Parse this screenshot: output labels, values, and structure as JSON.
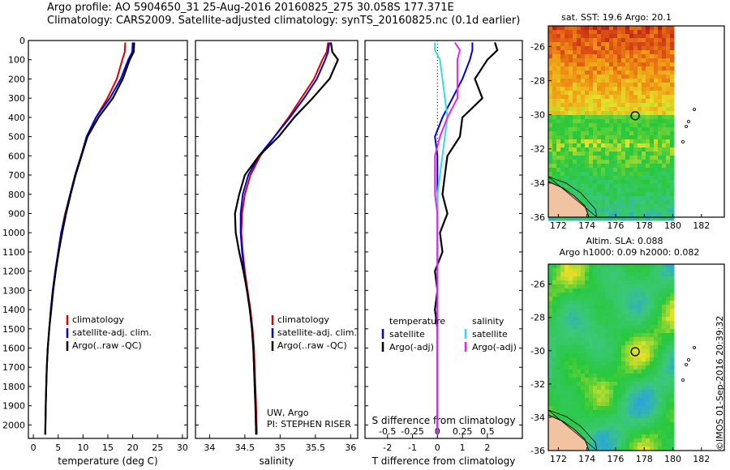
{
  "header": {
    "line1": "Argo profile: AO 5904650_31 25-Aug-2016 20160825_275 30.058S 177.371E",
    "line2": "Climatology: CARS2009. Satellite-adjusted climatology: synTS_20160825.nc (0.1d earlier)"
  },
  "stamp": "©IMOS 01-Sep-2016 20:39:32",
  "colors": {
    "clim": "#dd0000",
    "sat": "#0000dd",
    "argo": "#000000",
    "sal_sat": "#33dddd",
    "sal_argo": "#ee22ee"
  },
  "chart_data": [
    {
      "type": "line",
      "id": "temperature",
      "xlabel": "temperature (deg C)",
      "ylabel": "",
      "xlim": [
        -1,
        31
      ],
      "ylim": [
        2070,
        0
      ],
      "xticks": [
        0,
        5,
        10,
        15,
        20,
        25,
        30
      ],
      "yticks": [
        0,
        100,
        200,
        300,
        400,
        500,
        600,
        700,
        800,
        900,
        1000,
        1100,
        1200,
        1300,
        1400,
        1500,
        1600,
        1700,
        1800,
        1900,
        2000
      ],
      "legend": [
        "climatology",
        "satellite-adj. clim.",
        "Argo(..raw -QC)"
      ],
      "series": [
        {
          "name": "climatology",
          "color": "clim",
          "x": [
            18.5,
            18.4,
            17.9,
            16.8,
            14.9,
            12.6,
            10.8,
            9.6,
            8.4,
            7.4,
            6.4,
            5.6,
            5.0,
            4.4,
            3.9,
            3.5,
            3.2,
            2.9,
            2.7,
            2.6,
            2.5,
            2.4
          ],
          "y": [
            10,
            60,
            100,
            200,
            300,
            400,
            500,
            600,
            700,
            800,
            900,
            1000,
            1100,
            1200,
            1300,
            1400,
            1500,
            1600,
            1700,
            1800,
            1900,
            2050
          ]
        },
        {
          "name": "satellite-adj. clim.",
          "color": "sat",
          "x": [
            20.0,
            19.9,
            19.1,
            17.6,
            15.4,
            12.6,
            10.7,
            9.6,
            8.4,
            7.4,
            6.5,
            5.6,
            5.0,
            4.4,
            3.9,
            3.5,
            3.2,
            2.9,
            2.7,
            2.6,
            2.5,
            2.4
          ],
          "y": [
            10,
            60,
            100,
            200,
            300,
            400,
            500,
            600,
            700,
            800,
            900,
            1000,
            1100,
            1200,
            1300,
            1400,
            1500,
            1600,
            1700,
            1800,
            1900,
            2050
          ]
        },
        {
          "name": "Argo(..raw -QC)",
          "color": "argo",
          "x": [
            20.3,
            20.2,
            19.4,
            18.0,
            16.0,
            13.1,
            10.9,
            9.7,
            8.5,
            7.5,
            6.6,
            5.8,
            5.1,
            4.5,
            4.0,
            3.6,
            3.2,
            2.9,
            2.7,
            2.6,
            2.5,
            2.4
          ],
          "y": [
            10,
            60,
            100,
            200,
            300,
            400,
            500,
            600,
            700,
            800,
            900,
            1000,
            1100,
            1200,
            1300,
            1400,
            1500,
            1600,
            1700,
            1800,
            1900,
            2050
          ]
        }
      ]
    },
    {
      "type": "line",
      "id": "salinity",
      "xlabel": "salinity",
      "xlim": [
        33.8,
        36.1
      ],
      "ylim": [
        2070,
        0
      ],
      "xticks": [
        34,
        34.5,
        35,
        35.5,
        36
      ],
      "legend": [
        "climatology",
        "satellite-adj. clim.",
        "Argo(..raw -QC)"
      ],
      "annotation": [
        "UW, Argo",
        "PI: STEPHEN RISER"
      ],
      "series": [
        {
          "name": "climatology",
          "color": "clim",
          "x": [
            35.68,
            35.66,
            35.6,
            35.48,
            35.3,
            35.12,
            34.92,
            34.72,
            34.58,
            34.5,
            34.46,
            34.45,
            34.47,
            34.5,
            34.54,
            34.58,
            34.61,
            34.63,
            34.64,
            34.65,
            34.66,
            34.67
          ],
          "y": [
            10,
            60,
            100,
            200,
            300,
            400,
            500,
            600,
            700,
            800,
            900,
            1000,
            1100,
            1200,
            1300,
            1400,
            1500,
            1600,
            1700,
            1800,
            1900,
            2050
          ]
        },
        {
          "name": "satellite-adj. clim.",
          "color": "sat",
          "x": [
            35.7,
            35.68,
            35.64,
            35.52,
            35.34,
            35.14,
            34.92,
            34.7,
            34.55,
            34.47,
            34.44,
            34.44,
            34.46,
            34.49,
            34.53,
            34.57,
            34.6,
            34.62,
            34.63,
            34.64,
            34.65,
            34.66
          ],
          "y": [
            10,
            60,
            100,
            200,
            300,
            400,
            500,
            600,
            700,
            800,
            900,
            1000,
            1100,
            1200,
            1300,
            1400,
            1500,
            1600,
            1700,
            1800,
            1900,
            2050
          ]
        },
        {
          "name": "Argo(..raw -QC)",
          "color": "argo",
          "x": [
            35.72,
            35.74,
            35.82,
            35.7,
            35.46,
            35.2,
            34.98,
            34.7,
            34.5,
            34.42,
            34.36,
            34.37,
            34.42,
            34.48,
            34.53,
            34.57,
            34.6,
            34.62,
            34.63,
            34.64,
            34.65,
            34.66
          ],
          "y": [
            10,
            60,
            100,
            200,
            300,
            400,
            500,
            600,
            700,
            800,
            900,
            1000,
            1100,
            1200,
            1300,
            1400,
            1500,
            1600,
            1700,
            1800,
            1900,
            2050
          ]
        }
      ]
    },
    {
      "type": "line",
      "id": "difference",
      "xlabel": "T difference from climatology",
      "xlabel_top": "S difference from climatology",
      "xlim": [
        -2.9,
        3.4
      ],
      "ylim": [
        2070,
        0
      ],
      "xticks": [
        -2,
        -1,
        0,
        1,
        2
      ],
      "xticks_top": [
        "-0.5",
        "-0.25",
        "0",
        "0.25",
        "0.5"
      ],
      "xticks_top_pos": [
        -2,
        -1,
        0,
        1,
        2
      ],
      "legend_left": {
        "head": "temperature",
        "items": [
          "satellite",
          "Argo(-adj)"
        ]
      },
      "legend_right": {
        "head": "salinity",
        "items": [
          "satellite",
          "Argo(-adj)"
        ]
      },
      "series": [
        {
          "name": "satellite",
          "group": "temperature",
          "color": "sat",
          "x": [
            1.4,
            1.4,
            1.3,
            1.0,
            0.6,
            0.2,
            -0.1,
            0.0,
            0.0,
            0.0,
            0.0,
            0.0,
            0.0,
            0.0,
            0.0,
            0.0,
            0.0,
            0.0,
            0.0,
            0.0,
            0.0
          ],
          "y": [
            10,
            50,
            100,
            200,
            300,
            400,
            500,
            600,
            700,
            800,
            900,
            1000,
            1100,
            1200,
            1300,
            1400,
            1500,
            1600,
            1700,
            1800,
            2050
          ]
        },
        {
          "name": "Argo(-adj)",
          "group": "temperature",
          "color": "argo",
          "x": [
            2.3,
            2.4,
            2.0,
            1.5,
            1.8,
            1.0,
            0.9,
            0.4,
            0.3,
            0.2,
            0.4,
            0.1,
            0.2,
            -0.1,
            0.0,
            -0.1,
            0.0,
            0.0,
            0.0,
            0.0,
            0.0
          ],
          "y": [
            10,
            50,
            100,
            200,
            300,
            400,
            500,
            600,
            700,
            800,
            900,
            1000,
            1100,
            1200,
            1300,
            1400,
            1500,
            1600,
            1700,
            1800,
            2050
          ]
        },
        {
          "name": "satellite",
          "group": "salinity",
          "color": "sal_sat",
          "x": [
            -0.1,
            -0.1,
            0.1,
            0.2,
            0.3,
            0.4,
            0.3,
            0.2,
            0.1,
            0.0,
            0.0,
            0.0,
            0.0,
            0.0,
            0.0,
            0.0,
            0.0,
            0.0,
            0.0,
            0.0,
            0.0
          ],
          "y": [
            10,
            50,
            100,
            200,
            300,
            400,
            500,
            600,
            700,
            800,
            900,
            1000,
            1100,
            1200,
            1300,
            1400,
            1500,
            1600,
            1700,
            1800,
            2050
          ]
        },
        {
          "name": "Argo(-adj)",
          "group": "salinity",
          "color": "sal_argo",
          "x": [
            0.7,
            0.9,
            0.8,
            0.8,
            0.8,
            0.4,
            0.1,
            -0.1,
            -0.1,
            -0.1,
            0.0,
            0.0,
            0.0,
            0.0,
            0.0,
            0.0,
            0.0,
            0.0,
            0.0,
            0.0,
            0.0
          ],
          "y": [
            10,
            50,
            100,
            200,
            300,
            400,
            500,
            600,
            700,
            800,
            900,
            1000,
            1100,
            1200,
            1300,
            1400,
            1500,
            1600,
            1700,
            1800,
            2050
          ]
        }
      ]
    },
    {
      "type": "heatmap",
      "id": "sst-map",
      "title": "sat. SST: 19.6  Argo: 20.1",
      "xlim": [
        171.3,
        183.6
      ],
      "ylim": [
        -36,
        -24.8
      ],
      "xticks": [
        172,
        174,
        176,
        178,
        180,
        182
      ],
      "yticks": [
        -26,
        -28,
        -30,
        -32,
        -34,
        -36
      ],
      "marker": [
        177.371,
        -30.058
      ]
    },
    {
      "type": "heatmap",
      "id": "sla-map",
      "title": "Altim. SLA: 0.088",
      "subtitle": "Argo h1000: 0.09  h2000: 0.082",
      "xlim": [
        171.3,
        183.6
      ],
      "ylim": [
        -36,
        -24.8
      ],
      "xticks": [
        172,
        174,
        176,
        178,
        180,
        182
      ],
      "yticks": [
        -26,
        -28,
        -30,
        -32,
        -34,
        -36
      ],
      "marker": [
        177.371,
        -30.058
      ]
    }
  ]
}
